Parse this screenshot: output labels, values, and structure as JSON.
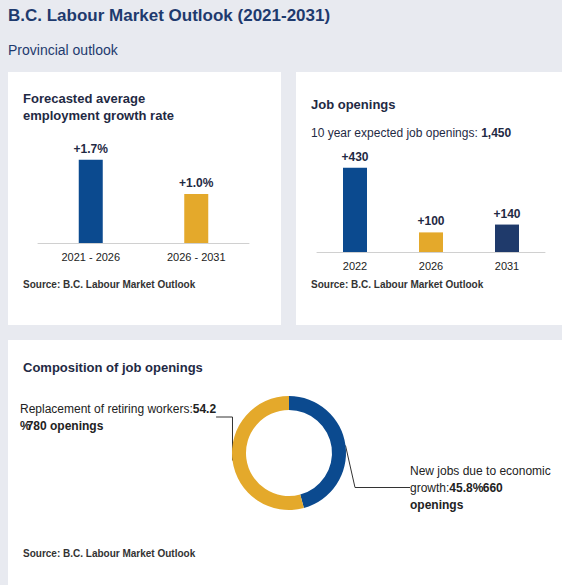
{
  "title": "B.C. Labour Market Outlook (2021-2031)",
  "subtitle": "Provincial outlook",
  "chart_data": [
    {
      "type": "bar",
      "title": "Forecasted average employment growth rate",
      "categories": [
        "2021 - 2026",
        "2026 - 2031"
      ],
      "values": [
        1.7,
        1.0
      ],
      "value_labels": [
        "+1.7%",
        "+1.0%"
      ],
      "colors": [
        "#0b4a8f",
        "#e4a92b"
      ],
      "ylim": [
        0,
        2
      ],
      "yticks": [
        0,
        2
      ],
      "grid": false,
      "tick_labels": "x",
      "data_labels": true,
      "source": "Source: B.C. Labour Market Outlook"
    },
    {
      "type": "bar",
      "title": "Job openings",
      "subtitle": "10 year expected job openings: 1,450",
      "categories": [
        "2022",
        "2026",
        "2031"
      ],
      "values": [
        430,
        100,
        140
      ],
      "value_labels": [
        "+430",
        "+100",
        "+140"
      ],
      "colors": [
        "#0b4a8f",
        "#e4a92b",
        "#1f3a6b"
      ],
      "ylim": [
        0,
        500
      ],
      "yticks": [
        0,
        500
      ],
      "grid": false,
      "tick_labels": "x",
      "data_labels": true,
      "source": "Source: B.C. Labour Market Outlook"
    },
    {
      "type": "pie",
      "title": "Composition of job openings",
      "categories": [
        "New jobs due to economic growth:",
        "Replacement of retiring workers:"
      ],
      "values": [
        45.8,
        54.2
      ],
      "value_labels": [
        "45.8%",
        "54.2%"
      ],
      "openings_labels": [
        "660 openings",
        "780 openings"
      ],
      "colors": [
        "#0b4a8f",
        "#e4a92b"
      ],
      "data_labels": true,
      "source": "Source: B.C. Labour Market Outlook"
    }
  ]
}
